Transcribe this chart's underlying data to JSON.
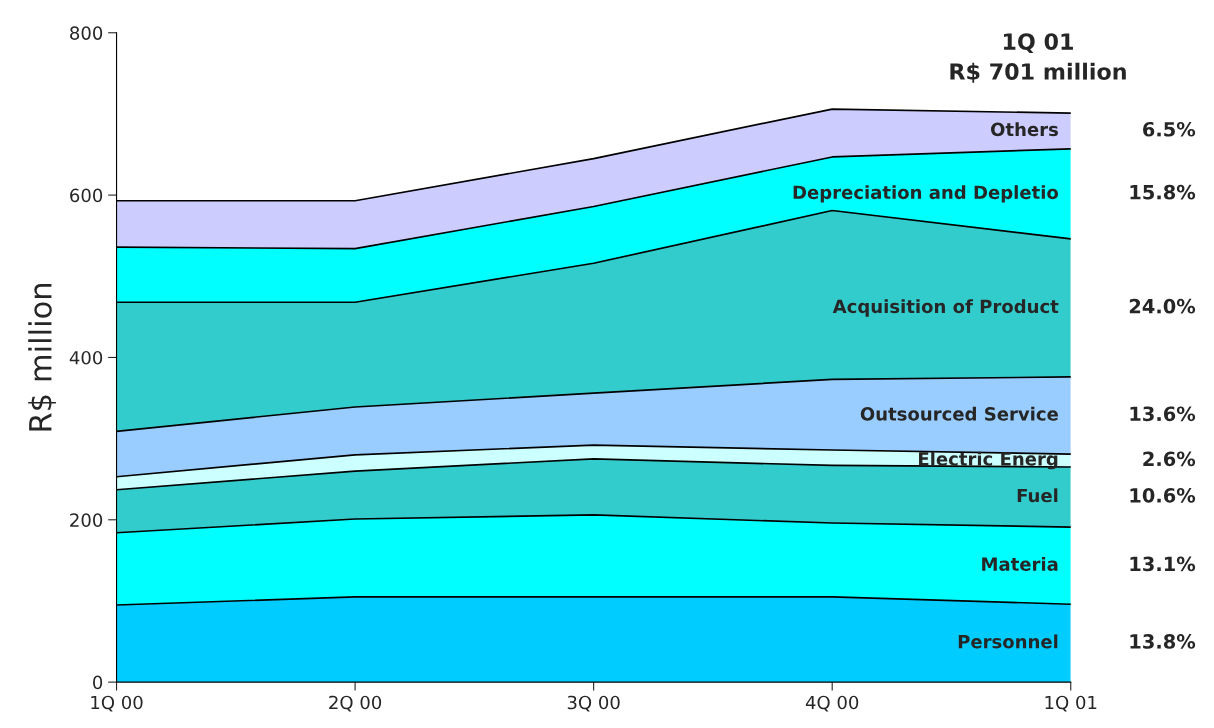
{
  "chart_data": {
    "type": "area",
    "stacked": true,
    "ylabel": "R$ million",
    "categories": [
      "1Q 00",
      "2Q 00",
      "3Q 00",
      "4Q 00",
      "1Q 01"
    ],
    "series": [
      {
        "name": "Personnel",
        "color": "#00ccff",
        "values": [
          95,
          105,
          105,
          105,
          96
        ]
      },
      {
        "name": "Materia",
        "color": "#00ffff",
        "values": [
          89,
          96,
          101,
          91,
          95
        ]
      },
      {
        "name": "Fuel",
        "color": "#33cccc",
        "values": [
          53,
          59,
          69,
          71,
          74
        ]
      },
      {
        "name": "Electric Energ",
        "color": "#ccffff",
        "values": [
          16,
          20,
          17,
          19,
          16
        ]
      },
      {
        "name": "Outsourced Service",
        "color": "#99ccff",
        "values": [
          56,
          59,
          64,
          87,
          95
        ]
      },
      {
        "name": "Acquisition of Product",
        "color": "#33cccc",
        "values": [
          159,
          129,
          160,
          208,
          170
        ]
      },
      {
        "name": "Depreciation and Depletio",
        "color": "#00ffff",
        "values": [
          68,
          66,
          70,
          66,
          111
        ]
      },
      {
        "name": "Others",
        "color": "#ccccff",
        "values": [
          57,
          59,
          59,
          59,
          44
        ]
      }
    ],
    "annotations": [
      "1Q 01\nR$ 701 million",
      "13.8%",
      "13.1%",
      "10.6%",
      "2.6%",
      "13.6%",
      "24.0%",
      "15.8%",
      "6.5%"
    ],
    "ylim": [
      0,
      800
    ],
    "yticks": [
      0,
      200,
      400,
      600,
      800
    ],
    "grid": false,
    "legend": false
  }
}
